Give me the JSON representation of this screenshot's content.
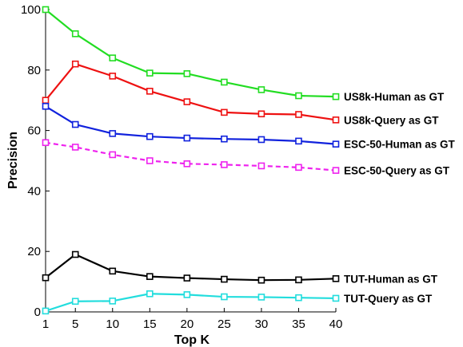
{
  "chart_data": {
    "type": "line",
    "xlabel": "Top K",
    "ylabel": "Precision",
    "x": [
      1,
      5,
      10,
      15,
      20,
      25,
      30,
      35,
      40
    ],
    "xticks": [
      1,
      5,
      10,
      15,
      20,
      25,
      30,
      35,
      40
    ],
    "yticks": [
      0,
      20,
      40,
      60,
      80,
      100
    ],
    "xlim": [
      1,
      40
    ],
    "ylim": [
      0,
      100
    ],
    "grid": false,
    "legend": "labels at right end of each line",
    "series": [
      {
        "name": "US8k-Human as GT",
        "color": "#22dd22",
        "style": "solid",
        "values": [
          100,
          92,
          84,
          79,
          78.8,
          76,
          73.5,
          71.5,
          71.2
        ]
      },
      {
        "name": "US8k-Query as GT",
        "color": "#ee1111",
        "style": "solid",
        "values": [
          70,
          82,
          78,
          73,
          69.5,
          66,
          65.5,
          65.3,
          63.5
        ]
      },
      {
        "name": "ESC-50-Human as GT",
        "color": "#1122dd",
        "style": "solid",
        "values": [
          68,
          62,
          59,
          58,
          57.5,
          57.2,
          57,
          56.5,
          55.5
        ]
      },
      {
        "name": "ESC-50-Query as GT",
        "color": "#ee22ee",
        "style": "dashed",
        "values": [
          56,
          54.5,
          52,
          50,
          49,
          48.7,
          48.3,
          47.8,
          46.8
        ]
      },
      {
        "name": "TUT-Human as GT",
        "color": "#000000",
        "style": "solid",
        "values": [
          11.3,
          19,
          13.5,
          11.7,
          11.2,
          10.8,
          10.5,
          10.6,
          11
        ]
      },
      {
        "name": "TUT-Query as GT",
        "color": "#22dddd",
        "style": "solid",
        "values": [
          0.3,
          3.5,
          3.6,
          6,
          5.7,
          5,
          4.9,
          4.7,
          4.5
        ]
      }
    ]
  }
}
